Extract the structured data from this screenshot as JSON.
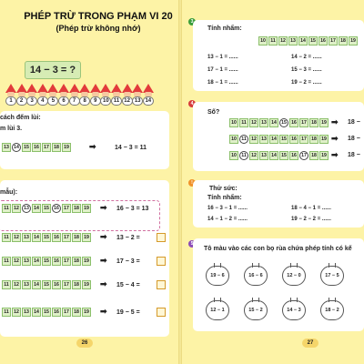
{
  "left": {
    "title": "PHÉP TRỪ TRONG PHẠM VI 20",
    "subtitle": "(Phép trừ không nhớ)",
    "big_expr": "14 − 3 = ?",
    "gnome_numbers": [
      "1",
      "2",
      "3",
      "4",
      "5",
      "6",
      "7",
      "8",
      "9",
      "10",
      "11",
      "12",
      "13",
      "14"
    ],
    "card1": {
      "line1": "cách đếm lùi:",
      "line2": "m lùi 3.",
      "strip": [
        "13",
        "14",
        "15",
        "16",
        "17",
        "18",
        "19"
      ],
      "result": "14 − 3 = 11"
    },
    "card2": {
      "label": "mẫu):",
      "rows": [
        {
          "cells": [
            "11",
            "12",
            "13",
            "14",
            "15",
            "16",
            "17",
            "18",
            "19"
          ],
          "expr": "16 − 3 = 13"
        },
        {
          "cells": [
            "11",
            "12",
            "13",
            "14",
            "15",
            "16",
            "17",
            "18",
            "19"
          ],
          "expr": "13 − 2 ="
        },
        {
          "cells": [
            "11",
            "12",
            "13",
            "14",
            "15",
            "16",
            "17",
            "18",
            "19"
          ],
          "expr": "17 − 3 ="
        },
        {
          "cells": [
            "11",
            "12",
            "13",
            "14",
            "15",
            "16",
            "17",
            "18",
            "19"
          ],
          "expr": "15 − 4 ="
        },
        {
          "cells": [
            "11",
            "12",
            "13",
            "14",
            "15",
            "16",
            "17",
            "18",
            "19"
          ],
          "expr": "19 − 5 ="
        }
      ]
    },
    "page_number": "26"
  },
  "right": {
    "ex1": {
      "number": "3",
      "label": "Tính nhẩm:",
      "strip": [
        "10",
        "11",
        "12",
        "13",
        "14",
        "15",
        "16",
        "17",
        "18",
        "19"
      ],
      "left": [
        "13 − 1 = ......",
        "17 − 1 = ......",
        "18 − 1 = ......"
      ],
      "right": [
        "14 − 2 = ......",
        "15 − 3 = ......",
        "19 − 2 = ......"
      ]
    },
    "ex2": {
      "number": "4",
      "label": "Số?",
      "strip": [
        "10",
        "11",
        "12",
        "13",
        "14",
        "15",
        "16",
        "17",
        "18",
        "19"
      ],
      "tails": [
        "18 −",
        "18 −",
        "18 −"
      ]
    },
    "ex3": {
      "label": "Thử sức:",
      "sub": "Tính nhẩm:",
      "left": [
        "16 − 3 − 1 = ......",
        "14 − 1 − 2 = ......"
      ],
      "right": [
        "18 − 4 − 1 = ......",
        "19 − 2 − 2 = ......"
      ]
    },
    "ex4": {
      "number": "5",
      "label": "Tô màu vào các con bọ rùa chứa phép tính có kế",
      "bugs_row1": [
        "19 − 6",
        "16 − 6",
        "12 − 0",
        "17 − 5"
      ],
      "bugs_row2": [
        "12 − 1",
        "15 − 2",
        "14 − 3",
        "18 − 2"
      ]
    },
    "page_number": "27"
  },
  "colors": {
    "background": "#fdf3a6",
    "cell": "#dff0c8",
    "accent_green": "#3a9d3a",
    "accent_red": "#d63c3c",
    "accent_orange": "#f0922a",
    "accent_purple": "#8a4bb8"
  }
}
